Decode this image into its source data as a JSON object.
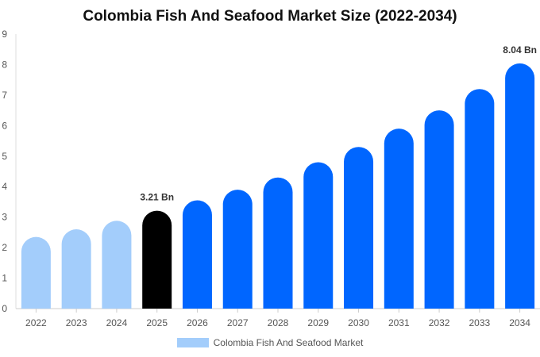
{
  "chart_data": {
    "type": "bar",
    "title": "Colombia Fish And Seafood Market Size (2022-2034)",
    "categories": [
      "2022",
      "2023",
      "2024",
      "2025",
      "2026",
      "2027",
      "2028",
      "2029",
      "2030",
      "2031",
      "2032",
      "2033",
      "2034"
    ],
    "series": [
      {
        "name": "Colombia Fish And Seafood Market",
        "values": [
          2.35,
          2.6,
          2.88,
          3.21,
          3.55,
          3.9,
          4.3,
          4.8,
          5.3,
          5.9,
          6.5,
          7.2,
          8.04
        ]
      }
    ],
    "bar_colors": [
      "#a3cdfb",
      "#a3cdfb",
      "#a3cdfb",
      "#000000",
      "#0066ff",
      "#0066ff",
      "#0066ff",
      "#0066ff",
      "#0066ff",
      "#0066ff",
      "#0066ff",
      "#0066ff",
      "#0066ff"
    ],
    "data_labels": [
      {
        "index": 3,
        "text": "3.21 Bn"
      },
      {
        "index": 12,
        "text": "8.04 Bn"
      }
    ],
    "ylim": [
      0,
      9
    ],
    "yticks": [
      "0",
      "1",
      "2",
      "3",
      "4",
      "5",
      "6",
      "7",
      "8",
      "9"
    ],
    "grid": false,
    "legend_position": "bottom",
    "legend_color": "#a3cdfb",
    "xlabel": "",
    "ylabel": ""
  }
}
